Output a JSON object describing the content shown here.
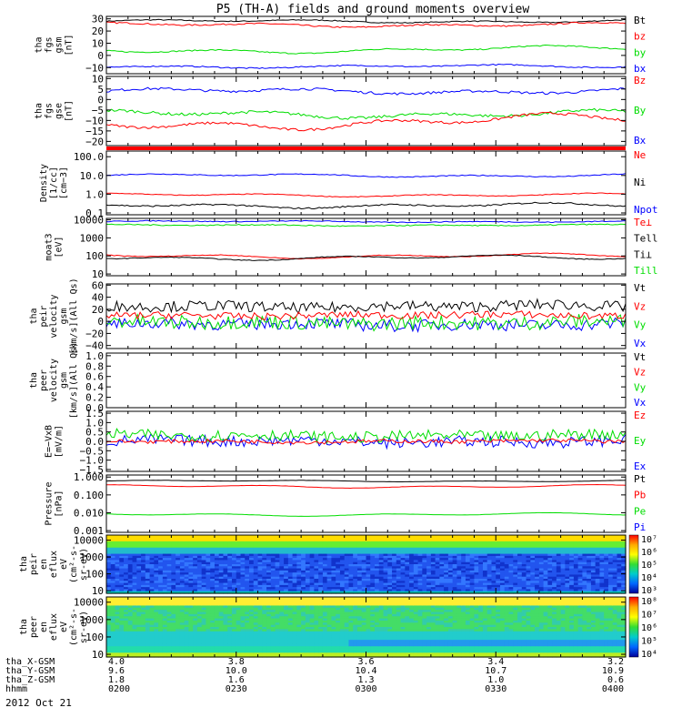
{
  "title": "P5 (TH-A) fields and ground moments overview",
  "colors": {
    "black": "#000000",
    "red": "#ff0000",
    "green": "#00dd00",
    "blue": "#0000ff",
    "bar": "#ff0000"
  },
  "panels": [
    {
      "id": "fgs-gsm",
      "ylabel": [
        "tha",
        "fgs",
        "gsm",
        "[nT]"
      ],
      "yticks": [
        "30",
        "20",
        "10",
        "0",
        "−10"
      ],
      "ytick_vals": [
        30,
        20,
        10,
        0,
        -10
      ],
      "ylim": [
        -15,
        32
      ],
      "scale": "linear",
      "legend": [
        {
          "label": "Bt",
          "color": "#000000"
        },
        {
          "label": "bz",
          "color": "#ff0000"
        },
        {
          "label": "by",
          "color": "#00dd00"
        },
        {
          "label": "bx",
          "color": "#0000ff"
        }
      ],
      "series": [
        {
          "name": "Bt",
          "color": "#000000",
          "base": 28,
          "amp": 1.5,
          "noise": 0.4
        },
        {
          "name": "bz",
          "color": "#ff0000",
          "base": 25,
          "amp": 2,
          "noise": 0.6
        },
        {
          "name": "by",
          "color": "#00dd00",
          "base": 3,
          "amp": 2.5,
          "noise": 0.5,
          "trend": 3
        },
        {
          "name": "bx",
          "color": "#0000ff",
          "base": -9,
          "amp": 1.5,
          "noise": 0.5
        }
      ]
    },
    {
      "id": "fgs-gse",
      "ylabel": [
        "tha",
        "fgs",
        "gse",
        "[nT]"
      ],
      "yticks": [
        "10",
        "5",
        "0",
        "−5",
        "−10",
        "−15",
        "−20"
      ],
      "ytick_vals": [
        10,
        5,
        0,
        -5,
        -10,
        -15,
        -20
      ],
      "ylim": [
        -22,
        11
      ],
      "scale": "linear",
      "legend": [
        {
          "label": "Bz",
          "color": "#ff0000"
        },
        {
          "label": "By",
          "color": "#00dd00"
        },
        {
          "label": "Bx",
          "color": "#0000ff"
        }
      ],
      "series": [
        {
          "name": "Bx",
          "color": "#0000ff",
          "base": 4,
          "amp": 1.5,
          "noise": 0.6
        },
        {
          "name": "By",
          "color": "#00dd00",
          "base": -7,
          "amp": 2,
          "noise": 0.7
        },
        {
          "name": "Bz",
          "color": "#ff0000",
          "base": -13,
          "amp": 3,
          "noise": 0.6,
          "trend": 4
        }
      ]
    },
    {
      "id": "density",
      "ylabel": [
        "Density",
        "[1/cc]",
        "[cm−3]"
      ],
      "yticks": [
        "100.0",
        "10.0",
        "1.0",
        "0.1"
      ],
      "ytick_vals": [
        100,
        10,
        1,
        0.1
      ],
      "ylim": [
        0.08,
        200
      ],
      "scale": "log",
      "legend": [
        {
          "label": "Ne",
          "color": "#ff0000"
        },
        {
          "label": "Ni",
          "color": "#000000"
        },
        {
          "label": "Npot",
          "color": "#0000ff"
        }
      ],
      "series": [
        {
          "name": "Npot",
          "color": "#0000ff",
          "base": 10,
          "amp": 0.1,
          "noise": 0.05
        },
        {
          "name": "Ne",
          "color": "#ff0000",
          "base": 0.9,
          "amp": 0.1,
          "noise": 0.04
        },
        {
          "name": "Ni",
          "color": "#000000",
          "base": 0.25,
          "amp": 0.15,
          "noise": 0.08
        }
      ]
    },
    {
      "id": "temperature",
      "ylabel": [
        "moat3",
        "[eV]"
      ],
      "yticks": [
        "10000",
        "1000",
        "100",
        "10"
      ],
      "ytick_vals": [
        10000,
        1000,
        100,
        10
      ],
      "ylim": [
        8,
        12000
      ],
      "scale": "log",
      "legend": [
        {
          "label": "Te⊥",
          "color": "#ff0000"
        },
        {
          "label": "Tell",
          "color": "#000000"
        },
        {
          "label": "Ti⊥",
          "color": "#000000"
        },
        {
          "label": "Till",
          "color": "#00dd00"
        }
      ],
      "series": [
        {
          "name": "Ti⊥",
          "color": "#0000ff",
          "base": 8000,
          "amp": 0.05,
          "noise": 0.05
        },
        {
          "name": "Till",
          "color": "#00dd00",
          "base": 5000,
          "amp": 0.05,
          "noise": 0.06
        },
        {
          "name": "Te⊥",
          "color": "#ff0000",
          "base": 100,
          "amp": 0.15,
          "noise": 0.04
        },
        {
          "name": "Tell",
          "color": "#000000",
          "base": 80,
          "amp": 0.15,
          "noise": 0.04
        }
      ]
    },
    {
      "id": "peir-velocity",
      "ylabel": [
        "tha",
        "peir",
        "velocity",
        "gsm",
        "[km/s](All Qs)"
      ],
      "yticks": [
        "60",
        "40",
        "20",
        "0",
        "−20",
        "−40"
      ],
      "ytick_vals": [
        60,
        40,
        20,
        0,
        -20,
        -40
      ],
      "ylim": [
        -45,
        62
      ],
      "scale": "linear",
      "legend": [
        {
          "label": "Vt",
          "color": "#000000"
        },
        {
          "label": "Vz",
          "color": "#ff0000"
        },
        {
          "label": "Vy",
          "color": "#00dd00"
        },
        {
          "label": "Vx",
          "color": "#0000ff"
        }
      ],
      "series": [
        {
          "name": "Vx",
          "color": "#0000ff",
          "base": -5,
          "amp": 3,
          "noise": 10
        },
        {
          "name": "Vy",
          "color": "#00dd00",
          "base": -2,
          "amp": 3,
          "noise": 12
        },
        {
          "name": "Vt",
          "color": "#000000",
          "base": 25,
          "amp": 3,
          "noise": 9
        },
        {
          "name": "Vz",
          "color": "#ff0000",
          "base": 10,
          "amp": 2,
          "noise": 6
        }
      ]
    },
    {
      "id": "peer-velocity",
      "ylabel": [
        "tha",
        "peer",
        "velocity",
        "gsm",
        "[km/s](All Qs)"
      ],
      "yticks": [
        "1.0",
        "0.8",
        "0.6",
        "0.4",
        "0.2",
        "0.0"
      ],
      "ytick_vals": [
        1.0,
        0.8,
        0.6,
        0.4,
        0.2,
        0.0
      ],
      "ylim": [
        0,
        1.05
      ],
      "scale": "linear",
      "legend": [
        {
          "label": "Vt",
          "color": "#000000"
        },
        {
          "label": "Vz",
          "color": "#ff0000"
        },
        {
          "label": "Vy",
          "color": "#00dd00"
        },
        {
          "label": "Vx",
          "color": "#0000ff"
        }
      ],
      "series": []
    },
    {
      "id": "efield",
      "ylabel": [
        "E=−VxB",
        "[mV/m]"
      ],
      "yticks": [
        "1.5",
        "1.0",
        "0.5",
        "0.0",
        "−0.5",
        "−1.0",
        "−1.5"
      ],
      "ytick_vals": [
        1.5,
        1.0,
        0.5,
        0.0,
        -0.5,
        -1.0,
        -1.5
      ],
      "ylim": [
        -1.6,
        1.6
      ],
      "scale": "linear",
      "legend": [
        {
          "label": "Ez",
          "color": "#ff0000"
        },
        {
          "label": "Ey",
          "color": "#00dd00"
        },
        {
          "label": "Ex",
          "color": "#0000ff"
        }
      ],
      "series": [
        {
          "name": "Ex",
          "color": "#0000ff",
          "base": 0,
          "amp": 0.1,
          "noise": 0.3
        },
        {
          "name": "Ey",
          "color": "#00dd00",
          "base": 0.3,
          "amp": 0.1,
          "noise": 0.3
        },
        {
          "name": "Ez",
          "color": "#ff0000",
          "base": 0,
          "amp": 0.05,
          "noise": 0.1
        }
      ]
    },
    {
      "id": "pressure",
      "ylabel": [
        "Pressure",
        "[nPa]"
      ],
      "yticks": [
        "1.000",
        "0.100",
        "0.010",
        "0.001"
      ],
      "ytick_vals": [
        1.0,
        0.1,
        0.01,
        0.001
      ],
      "ylim": [
        0.0008,
        1.3
      ],
      "scale": "log",
      "legend": [
        {
          "label": "Pt",
          "color": "#000000"
        },
        {
          "label": "Pb",
          "color": "#ff0000"
        },
        {
          "label": "Pe",
          "color": "#00dd00"
        },
        {
          "label": "Pi",
          "color": "#0000ff"
        }
      ],
      "series": [
        {
          "name": "Pt",
          "color": "#000000",
          "base": 0.6,
          "amp": 0.05,
          "noise": 0.01
        },
        {
          "name": "Pb",
          "color": "#ff0000",
          "base": 0.3,
          "amp": 0.1,
          "noise": 0.01
        },
        {
          "name": "Pe",
          "color": "#00dd00",
          "base": 0.008,
          "amp": 0.1,
          "noise": 0.01
        }
      ]
    },
    {
      "id": "peir-eflux",
      "ylabel": [
        "tha",
        "peir",
        "en",
        "eflux",
        "eV",
        "(cm²-s-",
        "sr-eV)"
      ],
      "yticks": [
        "10000",
        "1000",
        "100",
        "10"
      ],
      "ytick_vals": [
        10000,
        1000,
        100,
        10
      ],
      "ylim": [
        7,
        20000
      ],
      "scale": "log",
      "colorbar": {
        "labels": [
          "10⁷",
          "10⁶",
          "10⁵",
          "10⁴",
          "10³"
        ]
      }
    },
    {
      "id": "peer-eflux",
      "ylabel": [
        "tha",
        "peer",
        "en",
        "eflux",
        "eV",
        "(cm²-s-",
        "sr-eV)"
      ],
      "yticks": [
        "10000",
        "1000",
        "100",
        "10"
      ],
      "ytick_vals": [
        10000,
        1000,
        100,
        10
      ],
      "ylim": [
        7,
        20000
      ],
      "scale": "log",
      "colorbar": {
        "labels": [
          "10⁸",
          "10⁷",
          "10⁶",
          "10⁵",
          "10⁴"
        ]
      }
    }
  ],
  "footer": {
    "rows": [
      {
        "label": "tha_X-GSM",
        "values": [
          "4.0",
          "3.8",
          "3.6",
          "3.4",
          "3.2"
        ]
      },
      {
        "label": "tha_Y-GSM",
        "values": [
          "9.6",
          "10.0",
          "10.4",
          "10.7",
          "10.9"
        ]
      },
      {
        "label": "tha_Z-GSM",
        "values": [
          "1.8",
          "1.6",
          "1.3",
          "1.0",
          "0.6"
        ]
      },
      {
        "label": "hhmm",
        "values": [
          "0200",
          "0230",
          "0300",
          "0330",
          "0400"
        ]
      }
    ],
    "date": "2012 Oct 21"
  },
  "chart_data": {
    "type": "line",
    "title": "P5 (TH-A) fields and ground moments overview",
    "x": [
      "0200",
      "0230",
      "0300",
      "0330",
      "0400"
    ],
    "xlabel": "hhmm",
    "series": [
      {
        "name": "Bt (nT)",
        "values": [
          28,
          27,
          28,
          27,
          27
        ]
      },
      {
        "name": "bz (nT)",
        "values": [
          25,
          24,
          25,
          24,
          24
        ]
      },
      {
        "name": "by (nT)",
        "values": [
          2,
          3,
          4,
          5,
          6
        ]
      },
      {
        "name": "bx (nT)",
        "values": [
          -9,
          -9,
          -8,
          -9,
          -9
        ]
      },
      {
        "name": "Npot (cm-3)",
        "values": [
          10,
          10,
          10,
          9,
          10
        ]
      },
      {
        "name": "Ne (cm-3)",
        "values": [
          0.9,
          0.9,
          0.9,
          0.8,
          0.9
        ]
      },
      {
        "name": "Pt (nPa)",
        "values": [
          0.6,
          0.6,
          0.6,
          0.6,
          0.6
        ]
      },
      {
        "name": "Pe (nPa)",
        "values": [
          0.008,
          0.008,
          0.009,
          0.009,
          0.009
        ]
      }
    ]
  }
}
